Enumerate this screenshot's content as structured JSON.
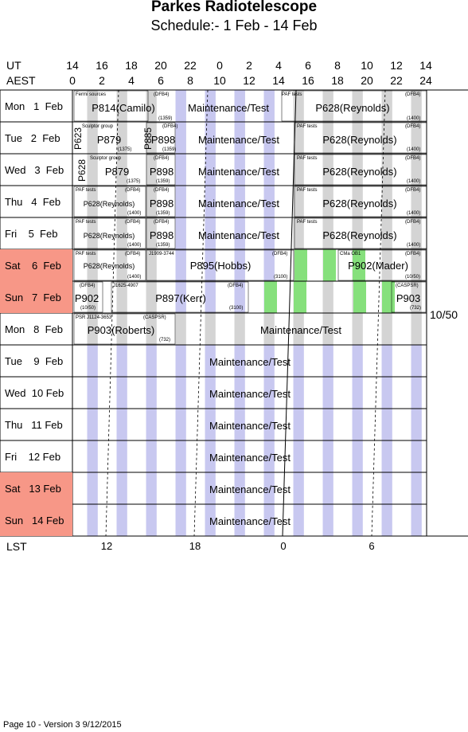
{
  "title": "Parkes Radiotelescope",
  "subtitle": "Schedule:- 1  Feb - 14 Feb",
  "header": {
    "ut_label": "UT",
    "aest_label": "AEST",
    "ut_hours": [
      "14",
      "16",
      "18",
      "20",
      "22",
      "0",
      "2",
      "4",
      "6",
      "8",
      "10",
      "12",
      "14"
    ],
    "aest_hours": [
      "0",
      "2",
      "4",
      "6",
      "8",
      "10",
      "12",
      "14",
      "16",
      "18",
      "20",
      "22",
      "24"
    ]
  },
  "days": [
    {
      "label": "Mon   1  Feb",
      "weekend": false
    },
    {
      "label": "Tue   2  Feb",
      "weekend": false
    },
    {
      "label": "Wed   3  Feb",
      "weekend": false
    },
    {
      "label": "Thu   4  Feb",
      "weekend": false
    },
    {
      "label": "Fri    5  Feb",
      "weekend": false
    },
    {
      "label": "Sat    6  Feb",
      "weekend": true
    },
    {
      "label": "Sun   7  Feb",
      "weekend": true
    },
    {
      "label": "Mon   8  Feb",
      "weekend": false
    },
    {
      "label": "Tue    9  Feb",
      "weekend": false
    },
    {
      "label": "Wed  10 Feb",
      "weekend": false
    },
    {
      "label": "Thu   11 Feb",
      "weekend": false
    },
    {
      "label": "Fri    12 Feb",
      "weekend": false
    },
    {
      "label": "Sat   13 Feb",
      "weekend": true
    },
    {
      "label": "Sun   14 Feb",
      "weekend": true
    }
  ],
  "maintenance_label": "Maintenance/Test",
  "rows": {
    "r0": {
      "fermi": "Fermi sources",
      "p814": "P814(Camilo)",
      "dfb4a": "(DFB4)",
      "c1359": "(1359)",
      "paf": "PAF tests",
      "p628": "P628(Reynolds)",
      "dfb4b": "(DFB4)",
      "c1400": "(1400)"
    },
    "r1": {
      "p623": "P623",
      "sculptor": "Sculptor group",
      "p879": "P879",
      "c1375": "(1375)",
      "p885": "P885",
      "dfb4a": "(DFB4)",
      "p898": "P898",
      "c1359": "(1359)",
      "paf": "PAF tests",
      "p628": "P628(Reynolds)",
      "dfb4b": "(DFB4)",
      "c1400": "(1400)"
    },
    "r2": {
      "p628v": "P628",
      "sculptor": "Sculptor group",
      "p879": "P879",
      "c1375": "(1375)",
      "dfb4a": "(DFB4)",
      "p898": "P898",
      "c1359": "(1359)",
      "paf": "PAF tests",
      "p628": "P628(Reynolds)",
      "dfb4b": "(DFB4)",
      "c1400": "(1400)"
    },
    "r3": {
      "paf1": "PAF tests",
      "dfb4a": "(DFB4)",
      "p628a": "P628(Reynolds)",
      "c1400a": "(1400)",
      "dfb4b": "(DFB4)",
      "p898": "P898",
      "c1359": "(1359)",
      "paf2": "PAF tests",
      "p628b": "P628(Reynolds)",
      "dfb4c": "(DFB4)",
      "c1400b": "(1400)"
    },
    "r4": {
      "paf1": "PAF tests",
      "dfb4a": "(DFB4)",
      "p628a": "P628(Reynolds)",
      "c1400a": "(1400)",
      "dfb4b": "(DFB4)",
      "p898": "P898",
      "c1359": "(1359)",
      "paf2": "PAF tests",
      "p628b": "P628(Reynolds)",
      "dfb4c": "(DFB4)",
      "c1400b": "(1400)"
    },
    "r5": {
      "paf1": "PAF tests",
      "dfb4a": "(DFB4)",
      "p628a": "P628(Reynolds)",
      "c1400": "(1400)",
      "j1909": "J1909-3744",
      "p895": "P895(Hobbs)",
      "dfb4b": "(DFB4)",
      "c3100": "(3100)",
      "cma": "CMa OB1",
      "p902": "P902(Mader)",
      "dfb4c": "(DFB4)",
      "c1050": "(10/50)"
    },
    "r6": {
      "dfb4a": "(DFB4)",
      "p902": "P902",
      "c1050": "(10/50)",
      "j1625": "J1625-4907",
      "p897": "P897(Kerr)",
      "dfb4b": "(DFB4)",
      "c3100": "(3100)",
      "caspsr": "(CASPSR)",
      "p903": "P903",
      "c732": "(732)"
    },
    "r7": {
      "psr": "PSR J1124-3653",
      "caspsr": "(CASPSR)",
      "p903": "P903(Roberts)",
      "c732": "(732)"
    }
  },
  "side_label": "10/50",
  "lst": {
    "label": "LST",
    "ticks": [
      "12",
      "18",
      "0",
      "6"
    ]
  },
  "footer": "Page 10 - Version 3  9/12/2015"
}
